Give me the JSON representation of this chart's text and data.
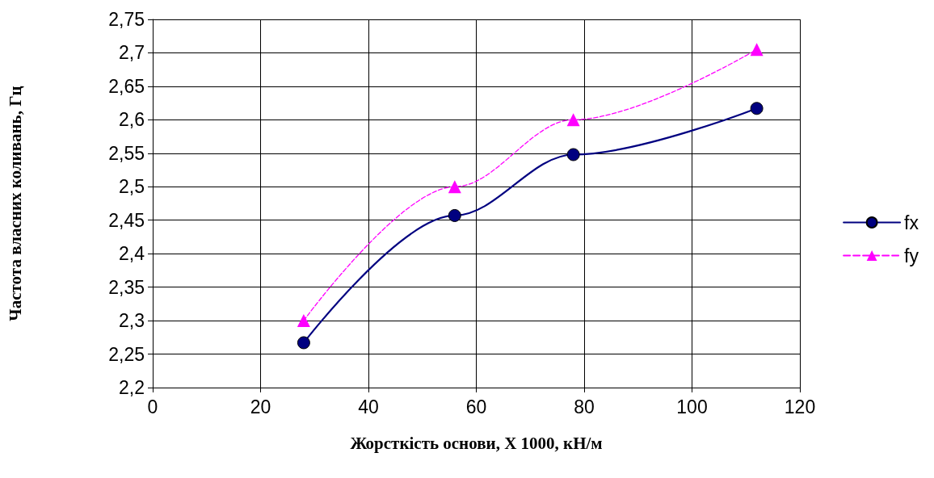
{
  "chart_data": {
    "type": "line",
    "xlabel": "Жорсткість основи, X 1000, кН/м",
    "ylabel": "Частота власних коливань, Гц",
    "x": [
      28,
      56,
      78,
      112
    ],
    "series": [
      {
        "name": "fx",
        "color": "#000080",
        "values": [
          2.267,
          2.457,
          2.548,
          2.617
        ],
        "marker": "circle",
        "line_style": "solid"
      },
      {
        "name": "fy",
        "color": "#ff00ff",
        "values": [
          2.3,
          2.5,
          2.6,
          2.705
        ],
        "marker": "triangle",
        "line_style": "dashed"
      }
    ],
    "xlim": [
      0,
      120
    ],
    "xticks": [
      0,
      20,
      40,
      60,
      80,
      100,
      120
    ],
    "ylim": [
      2.2,
      2.75
    ],
    "yticks": [
      {
        "value": 2.2,
        "label": "2,2"
      },
      {
        "value": 2.25,
        "label": "2,25"
      },
      {
        "value": 2.3,
        "label": "2,3"
      },
      {
        "value": 2.35,
        "label": "2,35"
      },
      {
        "value": 2.4,
        "label": "2,4"
      },
      {
        "value": 2.45,
        "label": "2,45"
      },
      {
        "value": 2.5,
        "label": "2,5"
      },
      {
        "value": 2.55,
        "label": "2,55"
      },
      {
        "value": 2.6,
        "label": "2,6"
      },
      {
        "value": 2.65,
        "label": "2,65"
      },
      {
        "value": 2.7,
        "label": "2,7"
      },
      {
        "value": 2.75,
        "label": "2,75"
      }
    ],
    "grid": true,
    "legend": "right"
  }
}
